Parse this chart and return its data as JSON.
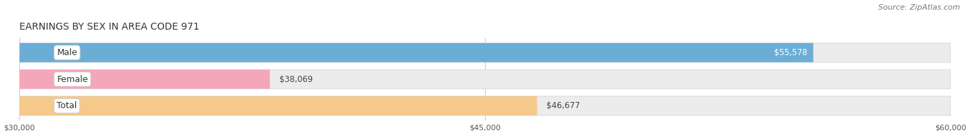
{
  "title": "EARNINGS BY SEX IN AREA CODE 971",
  "source": "Source: ZipAtlas.com",
  "categories": [
    "Male",
    "Female",
    "Total"
  ],
  "values": [
    55578,
    38069,
    46677
  ],
  "bar_colors": [
    "#6aaed6",
    "#f4a7b9",
    "#f5c98a"
  ],
  "bar_bg_color": "#ececec",
  "xmin": 30000,
  "xmax": 60000,
  "xticks": [
    30000,
    45000,
    60000
  ],
  "xtick_labels": [
    "$30,000",
    "$45,000",
    "$60,000"
  ],
  "title_fontsize": 10,
  "source_fontsize": 8,
  "bar_label_fontsize": 8.5,
  "cat_label_fontsize": 9,
  "figsize": [
    14.06,
    1.96
  ],
  "dpi": 100
}
